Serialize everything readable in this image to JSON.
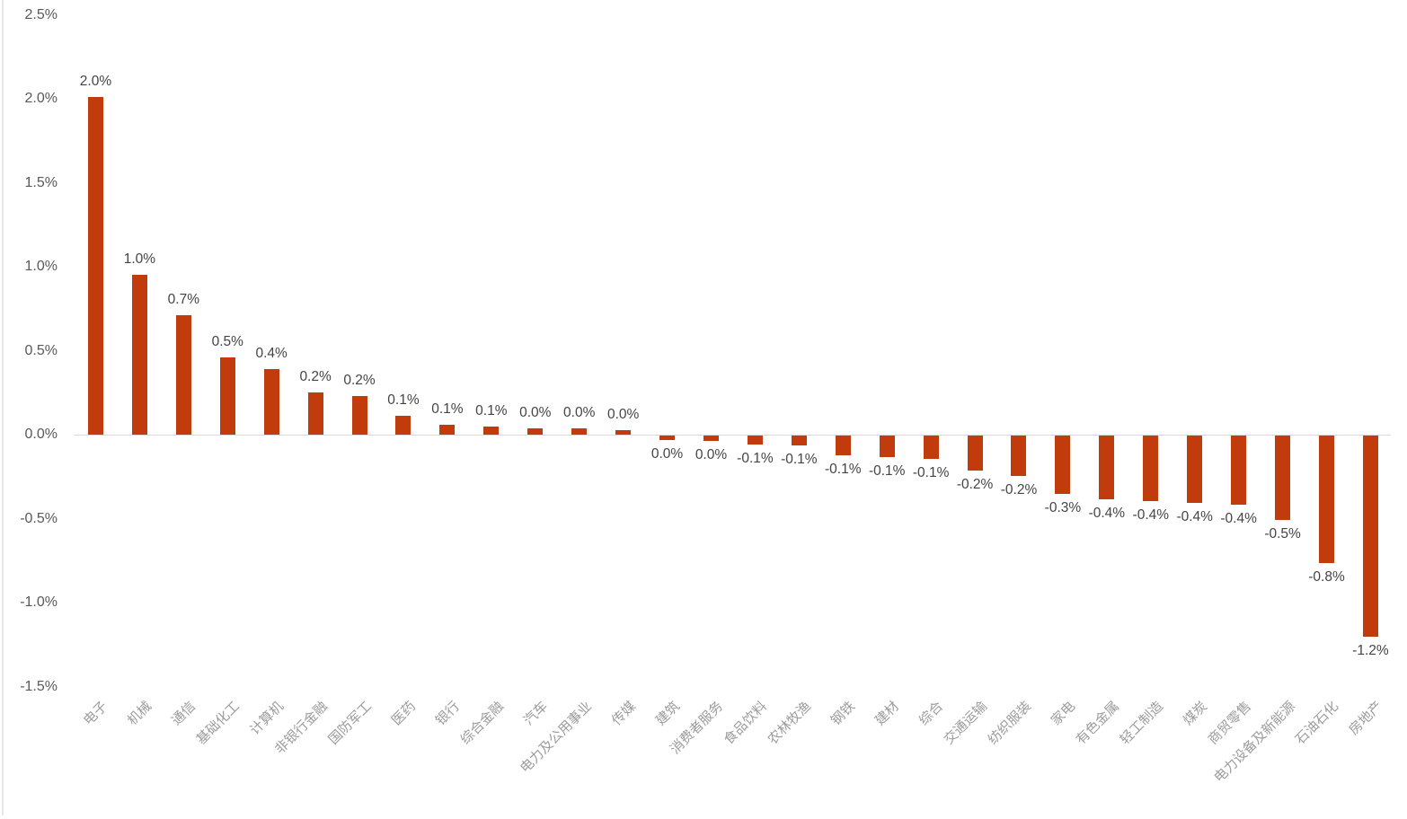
{
  "chart_data": {
    "type": "bar",
    "title": "",
    "xlabel": "",
    "ylabel": "",
    "categories": [
      "电子",
      "机械",
      "通信",
      "基础化工",
      "计算机",
      "非银行金融",
      "国防军工",
      "医药",
      "银行",
      "综合金融",
      "汽车",
      "电力及公用事业",
      "传媒",
      "建筑",
      "消费者服务",
      "食品饮料",
      "农林牧渔",
      "钢铁",
      "建材",
      "综合",
      "交通运输",
      "纺织服装",
      "家电",
      "有色金属",
      "轻工制造",
      "煤炭",
      "商贸零售",
      "电力设备及新能源",
      "石油石化",
      "房地产"
    ],
    "values": [
      2.01,
      0.95,
      0.71,
      0.46,
      0.39,
      0.25,
      0.23,
      0.11,
      0.06,
      0.05,
      0.04,
      0.035,
      0.025,
      -0.025,
      -0.03,
      -0.055,
      -0.06,
      -0.12,
      -0.13,
      -0.14,
      -0.21,
      -0.24,
      -0.35,
      -0.38,
      -0.39,
      -0.4,
      -0.41,
      -0.5,
      -0.76,
      -1.2
    ],
    "value_labels": [
      "2.0%",
      "1.0%",
      "0.7%",
      "0.5%",
      "0.4%",
      "0.2%",
      "0.2%",
      "0.1%",
      "0.1%",
      "0.1%",
      "0.0%",
      "0.0%",
      "0.0%",
      "0.0%",
      "0.0%",
      "-0.1%",
      "-0.1%",
      "-0.1%",
      "-0.1%",
      "-0.1%",
      "-0.2%",
      "-0.2%",
      "-0.3%",
      "-0.4%",
      "-0.4%",
      "-0.4%",
      "-0.4%",
      "-0.5%",
      "-0.8%",
      "-1.2%"
    ],
    "y_ticks": [
      "2.5%",
      "2.0%",
      "1.5%",
      "1.0%",
      "0.5%",
      "0.0%",
      "-0.5%",
      "-1.0%",
      "-1.5%"
    ],
    "y_tick_values": [
      2.5,
      2.0,
      1.5,
      1.0,
      0.5,
      0.0,
      -0.5,
      -1.0,
      -1.5
    ],
    "ylim": [
      -1.5,
      2.5
    ],
    "grid": false,
    "legend_position": "none",
    "colors": {
      "bar": "#c23b0d",
      "axis_line": "#d9d9d9",
      "y_tick_text": "#595959",
      "value_label_text": "#444444",
      "category_label_text": "#9c9c9c",
      "left_border": "#e7e7e7",
      "background": "#ffffff"
    }
  }
}
